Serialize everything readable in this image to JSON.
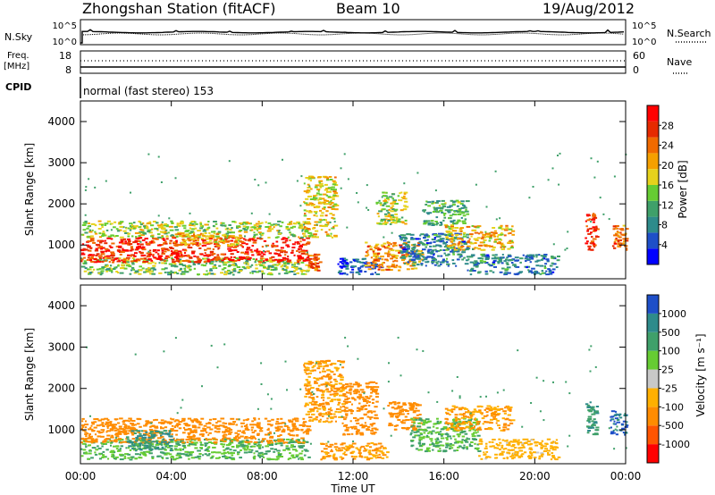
{
  "header": {
    "station": "Zhongshan Station (fitACF)",
    "beam": "Beam 10",
    "date": "19/Aug/2012"
  },
  "top_panels": {
    "nsky_label": "N.Sky",
    "nsearch_label": "N.Search",
    "nsky_ticks": [
      "10^5",
      "10^0"
    ],
    "nsearch_ticks": [
      "10^5",
      "10^0"
    ],
    "freq_label": "Freq.",
    "freq_unit": "[MHz]",
    "freq_ticks": [
      "18",
      "8"
    ],
    "nave_label": "Nave",
    "nave_ticks": [
      "60",
      "0"
    ],
    "cpid_label": "CPID",
    "cpid_text": "normal (fast stereo) 153"
  },
  "axes": {
    "ylabel": "Slant Range [km]",
    "xlabel": "Time UT",
    "xticks": [
      "00:00",
      "04:00",
      "08:00",
      "12:00",
      "16:00",
      "20:00",
      "00:00"
    ],
    "yticks": [
      "1000",
      "2000",
      "3000",
      "4000"
    ]
  },
  "colors": {
    "power": [
      "#0000ff",
      "#1e4fc8",
      "#2e8b8b",
      "#3fa06a",
      "#66cc33",
      "#e6d21c",
      "#f5a000",
      "#f06a00",
      "#e62a00",
      "#ff0000"
    ],
    "velocity": [
      "#ff0000",
      "#ff5500",
      "#ff8c00",
      "#ffb000",
      "#c8c8c8",
      "#66cc33",
      "#3fa06a",
      "#2e8b8b",
      "#1e4fc8"
    ]
  },
  "colorbars": {
    "power": {
      "label": "Power [dB]",
      "ticks": [
        "4",
        "8",
        "12",
        "16",
        "20",
        "24",
        "28"
      ]
    },
    "velocity": {
      "label": "Velocity [m s⁻¹]",
      "ticks": [
        "-1000",
        "-500",
        "-100",
        "-25",
        "25",
        "100",
        "500",
        "1000"
      ]
    }
  },
  "chart_data": [
    {
      "type": "heatmap",
      "title": "Power",
      "x_range_hours": [
        0,
        24
      ],
      "ylim": [
        180,
        4500
      ],
      "zlabel": "Power [dB]",
      "regions": [
        {
          "t0": 0.0,
          "t1": 10.0,
          "r0": 300,
          "r1": 700,
          "value": 14
        },
        {
          "t0": 0.0,
          "t1": 10.0,
          "r0": 600,
          "r1": 1200,
          "value": 28
        },
        {
          "t0": 0.0,
          "t1": 10.0,
          "r0": 1200,
          "r1": 1600,
          "value": 16
        },
        {
          "t0": 4.0,
          "t1": 7.0,
          "r0": 1000,
          "r1": 1300,
          "value": 20
        },
        {
          "t0": 9.8,
          "t1": 11.2,
          "r0": 1200,
          "r1": 2700,
          "value": 18
        },
        {
          "t0": 10.0,
          "t1": 10.5,
          "r0": 400,
          "r1": 800,
          "value": 24
        },
        {
          "t0": 11.3,
          "t1": 13.2,
          "r0": 300,
          "r1": 700,
          "value": 4
        },
        {
          "t0": 12.5,
          "t1": 15.0,
          "r0": 400,
          "r1": 1100,
          "value": 22
        },
        {
          "t0": 13.0,
          "t1": 14.3,
          "r0": 1500,
          "r1": 2300,
          "value": 16
        },
        {
          "t0": 14.0,
          "t1": 17.0,
          "r0": 500,
          "r1": 1300,
          "value": 8
        },
        {
          "t0": 15.0,
          "t1": 17.0,
          "r0": 1500,
          "r1": 2100,
          "value": 12
        },
        {
          "t0": 16.0,
          "t1": 19.0,
          "r0": 900,
          "r1": 1500,
          "value": 20
        },
        {
          "t0": 17.0,
          "t1": 21.0,
          "r0": 300,
          "r1": 800,
          "value": 8
        },
        {
          "t0": 22.2,
          "t1": 22.7,
          "r0": 900,
          "r1": 1800,
          "value": 28
        },
        {
          "t0": 23.4,
          "t1": 24.0,
          "r0": 900,
          "r1": 1500,
          "value": 24
        }
      ]
    },
    {
      "type": "heatmap",
      "title": "Velocity",
      "x_range_hours": [
        0,
        24
      ],
      "ylim": [
        180,
        4500
      ],
      "zlabel": "Velocity [m s⁻¹]",
      "regions": [
        {
          "t0": 0.0,
          "t1": 10.0,
          "r0": 300,
          "r1": 800,
          "value": 100
        },
        {
          "t0": 0.0,
          "t1": 10.0,
          "r0": 700,
          "r1": 1300,
          "value": -200
        },
        {
          "t0": 2.0,
          "t1": 4.0,
          "r0": 500,
          "r1": 1000,
          "value": 500
        },
        {
          "t0": 9.8,
          "t1": 11.5,
          "r0": 1200,
          "r1": 2700,
          "value": -100
        },
        {
          "t0": 10.5,
          "t1": 13.5,
          "r0": 300,
          "r1": 700,
          "value": -100
        },
        {
          "t0": 11.5,
          "t1": 13.0,
          "r0": 900,
          "r1": 2200,
          "value": -300
        },
        {
          "t0": 13.5,
          "t1": 15.0,
          "r0": 1000,
          "r1": 1700,
          "value": -300
        },
        {
          "t0": 14.5,
          "t1": 17.5,
          "r0": 500,
          "r1": 1300,
          "value": 100
        },
        {
          "t0": 16.0,
          "t1": 19.0,
          "r0": 1000,
          "r1": 1600,
          "value": -100
        },
        {
          "t0": 17.5,
          "t1": 21.0,
          "r0": 300,
          "r1": 800,
          "value": -50
        },
        {
          "t0": 22.2,
          "t1": 22.7,
          "r0": 900,
          "r1": 1700,
          "value": 500
        },
        {
          "t0": 23.3,
          "t1": 24.0,
          "r0": 900,
          "r1": 1500,
          "value": 1000
        }
      ]
    }
  ]
}
